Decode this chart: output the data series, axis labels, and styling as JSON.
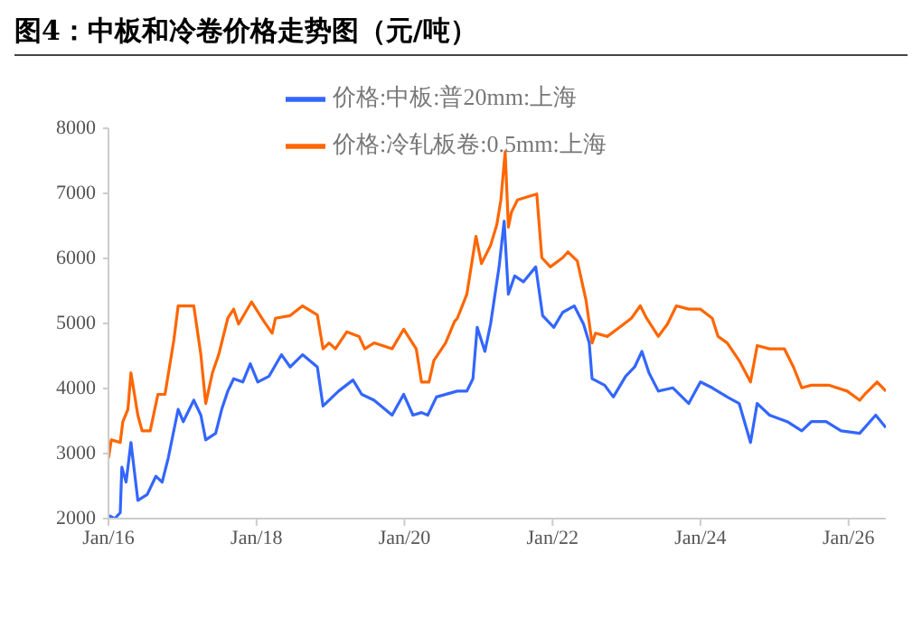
{
  "chart_data": {
    "type": "line",
    "title": "图4：中板和冷卷价格走势图（元/吨）",
    "xlim": [
      "2016-01-01",
      "2026-07-04"
    ],
    "xticks": [
      {
        "value": "2016-01-01",
        "label": "Jan/16"
      },
      {
        "value": "2018-01-01",
        "label": "Jan/18"
      },
      {
        "value": "2020-01-01",
        "label": "Jan/20"
      },
      {
        "value": "2022-01-01",
        "label": "Jan/22"
      },
      {
        "value": "2024-01-01",
        "label": "Jan/24"
      },
      {
        "value": "2026-01-01",
        "label": "Jan/26"
      }
    ],
    "ylim": [
      2000,
      8000
    ],
    "yticks": [
      2000,
      3000,
      4000,
      5000,
      6000,
      7000,
      8000
    ],
    "grid": false,
    "legend": "top",
    "line_style": "solid",
    "marker": "none",
    "series": [
      {
        "name": "价格:中板:普20mm:上海",
        "color": "#3366ff",
        "x": [
          "2016-01-01",
          "2016-02-01",
          "2016-02-28",
          "2016-03-07",
          "2016-03-28",
          "2016-04-21",
          "2016-05-25",
          "2016-07-10",
          "2016-08-22",
          "2016-09-22",
          "2016-10-22",
          "2016-12-10",
          "2017-01-04",
          "2017-02-25",
          "2017-04-01",
          "2017-04-25",
          "2017-06-13",
          "2017-07-13",
          "2017-08-12",
          "2017-09-10",
          "2017-10-25",
          "2017-12-01",
          "2018-01-07",
          "2018-03-04",
          "2018-05-04",
          "2018-06-16",
          "2018-08-16",
          "2018-10-28",
          "2018-11-25",
          "2019-02-10",
          "2019-04-22",
          "2019-06-04",
          "2019-08-04",
          "2019-11-01",
          "2019-12-28",
          "2020-02-12",
          "2020-03-25",
          "2020-04-25",
          "2020-06-07",
          "2020-09-18",
          "2020-11-04",
          "2020-12-04",
          "2020-12-25",
          "2021-02-01",
          "2021-03-01",
          "2021-04-12",
          "2021-05-07",
          "2021-05-28",
          "2021-06-28",
          "2021-08-10",
          "2021-10-10",
          "2021-11-13",
          "2022-01-07",
          "2022-02-20",
          "2022-04-18",
          "2022-06-03",
          "2022-07-01",
          "2022-07-15",
          "2022-09-15",
          "2022-10-28",
          "2022-12-28",
          "2023-02-10",
          "2023-03-18",
          "2023-04-22",
          "2023-06-07",
          "2023-08-18",
          "2023-11-04",
          "2024-01-01",
          "2024-02-28",
          "2024-05-12",
          "2024-07-10",
          "2024-09-04",
          "2024-10-07",
          "2024-12-07",
          "2025-03-04",
          "2025-05-15",
          "2025-07-01",
          "2025-09-12",
          "2025-11-25",
          "2026-02-25",
          "2026-05-15",
          "2026-07-04"
        ],
        "values": [
          2050,
          2000,
          2090,
          2790,
          2560,
          3170,
          2280,
          2370,
          2650,
          2560,
          2930,
          3680,
          3490,
          3820,
          3590,
          3210,
          3310,
          3680,
          3960,
          4150,
          4100,
          4380,
          4100,
          4190,
          4520,
          4330,
          4520,
          4330,
          3730,
          3960,
          4130,
          3910,
          3820,
          3590,
          3910,
          3590,
          3630,
          3590,
          3870,
          3960,
          3960,
          4150,
          4940,
          4570,
          4990,
          5870,
          6570,
          5450,
          5730,
          5640,
          5870,
          5120,
          4940,
          5170,
          5270,
          4990,
          4700,
          4150,
          4050,
          3870,
          4190,
          4330,
          4570,
          4240,
          3960,
          4010,
          3770,
          4100,
          4010,
          3870,
          3770,
          3170,
          3770,
          3590,
          3490,
          3350,
          3490,
          3490,
          3350,
          3310,
          3590,
          3400
        ]
      },
      {
        "name": "价格:冷轧板卷:0.5mm:上海",
        "color": "#ff6600",
        "x": [
          "2016-01-01",
          "2016-01-15",
          "2016-02-28",
          "2016-03-12",
          "2016-04-06",
          "2016-04-21",
          "2016-05-25",
          "2016-06-15",
          "2016-07-25",
          "2016-09-01",
          "2016-10-06",
          "2016-11-19",
          "2016-12-10",
          "2017-02-25",
          "2017-04-01",
          "2017-04-25",
          "2017-05-28",
          "2017-06-28",
          "2017-08-12",
          "2017-09-10",
          "2017-10-04",
          "2017-12-07",
          "2018-02-07",
          "2018-03-19",
          "2018-04-04",
          "2018-06-16",
          "2018-08-16",
          "2018-10-28",
          "2018-11-25",
          "2018-12-25",
          "2019-01-25",
          "2019-03-22",
          "2019-05-22",
          "2019-06-19",
          "2019-08-04",
          "2019-11-01",
          "2019-12-28",
          "2020-02-28",
          "2020-03-25",
          "2020-05-01",
          "2020-05-25",
          "2020-07-22",
          "2020-09-04",
          "2020-09-18",
          "2020-11-04",
          "2020-12-19",
          "2021-01-15",
          "2021-03-01",
          "2021-04-01",
          "2021-04-21",
          "2021-05-12",
          "2021-05-28",
          "2021-06-12",
          "2021-07-12",
          "2021-10-15",
          "2021-11-09",
          "2021-12-21",
          "2022-02-20",
          "2022-03-18",
          "2022-05-03",
          "2022-06-15",
          "2022-07-15",
          "2022-08-01",
          "2022-09-28",
          "2022-11-28",
          "2023-01-25",
          "2023-03-10",
          "2023-04-10",
          "2023-06-07",
          "2023-07-22",
          "2023-09-04",
          "2023-11-04",
          "2024-01-01",
          "2024-02-28",
          "2024-03-28",
          "2024-05-12",
          "2024-07-10",
          "2024-09-04",
          "2024-10-07",
          "2024-12-07",
          "2025-02-18",
          "2025-04-04",
          "2025-05-15",
          "2025-07-01",
          "2025-09-28",
          "2025-12-25",
          "2026-02-25",
          "2026-03-22",
          "2026-05-22",
          "2026-07-04"
        ],
        "values": [
          2930,
          3210,
          3170,
          3490,
          3680,
          4240,
          3590,
          3350,
          3350,
          3910,
          3910,
          4750,
          5270,
          5270,
          4520,
          3770,
          4240,
          4520,
          5080,
          5220,
          4990,
          5330,
          5030,
          4850,
          5080,
          5120,
          5270,
          5130,
          4610,
          4700,
          4610,
          4870,
          4800,
          4610,
          4700,
          4610,
          4910,
          4610,
          4100,
          4100,
          4430,
          4700,
          5030,
          5080,
          5450,
          6340,
          5920,
          6200,
          6520,
          6900,
          7640,
          6480,
          6710,
          6900,
          6990,
          6010,
          5870,
          6010,
          6100,
          5960,
          5360,
          4700,
          4850,
          4800,
          4940,
          5080,
          5270,
          5080,
          4800,
          4990,
          5270,
          5220,
          5220,
          5080,
          4800,
          4700,
          4430,
          4100,
          4660,
          4610,
          4610,
          4330,
          4010,
          4050,
          4050,
          3960,
          3820,
          3910,
          4100,
          3960
        ]
      }
    ]
  }
}
